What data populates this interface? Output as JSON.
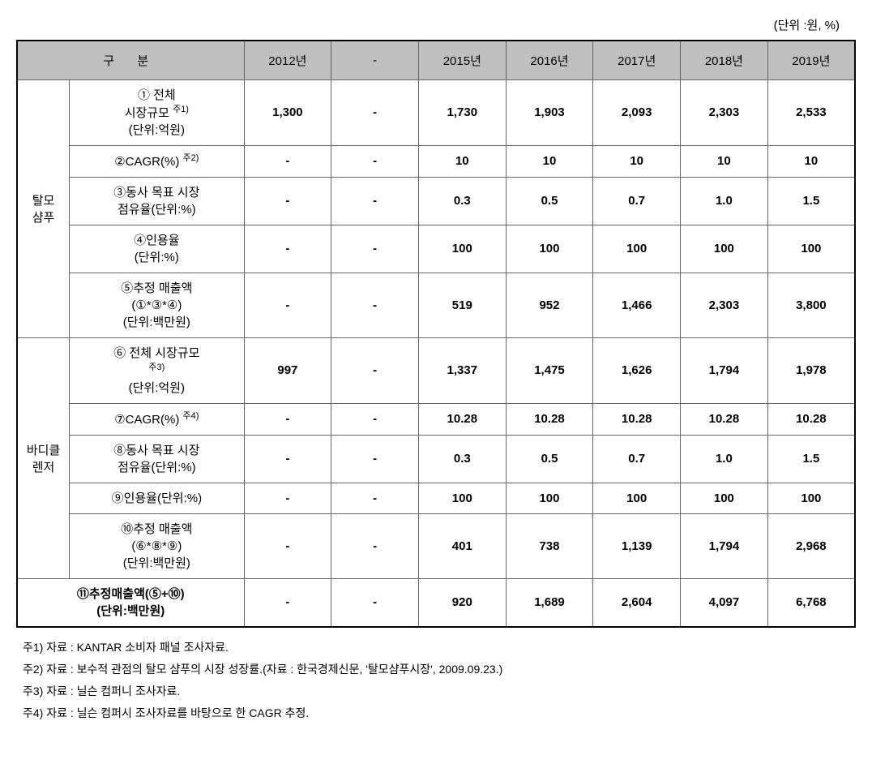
{
  "unit_label": "(단위 :원, %)",
  "header": {
    "gubun": "구   분",
    "years": [
      "2012년",
      "-",
      "2015년",
      "2016년",
      "2017년",
      "2018년",
      "2019년"
    ]
  },
  "categories": {
    "talmo": {
      "name": "탈모\n샴푸",
      "rows": [
        {
          "label": "① 전체\n시장규모 주1)\n(단위:억원)",
          "values": [
            "1,300",
            "-",
            "1,730",
            "1,903",
            "2,093",
            "2,303",
            "2,533"
          ]
        },
        {
          "label": "②CAGR(%) 주2)",
          "values": [
            "-",
            "-",
            "10",
            "10",
            "10",
            "10",
            "10"
          ]
        },
        {
          "label": "③동사 목표 시장\n점유율(단위:%)",
          "values": [
            "-",
            "-",
            "0.3",
            "0.5",
            "0.7",
            "1.0",
            "1.5"
          ]
        },
        {
          "label": "④인용율\n(단위:%)",
          "values": [
            "-",
            "-",
            "100",
            "100",
            "100",
            "100",
            "100"
          ]
        },
        {
          "label": "⑤추정 매출액\n(①*③*④)\n(단위:백만원)",
          "values": [
            "-",
            "-",
            "519",
            "952",
            "1,466",
            "2,303",
            "3,800"
          ]
        }
      ]
    },
    "body": {
      "name": "바디클\n렌저",
      "rows": [
        {
          "label": "⑥ 전체 시장규모\n주3)\n(단위:억원)",
          "values": [
            "997",
            "-",
            "1,337",
            "1,475",
            "1,626",
            "1,794",
            "1,978"
          ]
        },
        {
          "label": "⑦CAGR(%) 주4)",
          "values": [
            "-",
            "-",
            "10.28",
            "10.28",
            "10.28",
            "10.28",
            "10.28"
          ]
        },
        {
          "label": "⑧동사 목표 시장\n점유율(단위:%)",
          "values": [
            "-",
            "-",
            "0.3",
            "0.5",
            "0.7",
            "1.0",
            "1.5"
          ]
        },
        {
          "label": "⑨인용율(단위:%)",
          "values": [
            "-",
            "-",
            "100",
            "100",
            "100",
            "100",
            "100"
          ]
        },
        {
          "label": "⑩추정 매출액\n(⑥*⑧*⑨)\n(단위:백만원)",
          "values": [
            "-",
            "-",
            "401",
            "738",
            "1,139",
            "1,794",
            "2,968"
          ]
        }
      ]
    }
  },
  "total": {
    "label": "⑪추정매출액(⑤+⑩)\n(단위:백만원)",
    "values": [
      "-",
      "-",
      "920",
      "1,689",
      "2,604",
      "4,097",
      "6,768"
    ]
  },
  "footnotes": [
    "주1) 자료 : KANTAR 소비자 패널 조사자료.",
    "주2) 자료 : 보수적 관점의 탈모 샴푸의 시장 성장률.(자료 : 한국경제신문, '탈모샴푸시장', 2009.09.23.)",
    "주3) 자료 : 닐슨 컴퍼니 조사자료.",
    "주4) 자료 : 닐슨 컴퍼시 조사자료를 바탕으로 한 CAGR 추정."
  ]
}
